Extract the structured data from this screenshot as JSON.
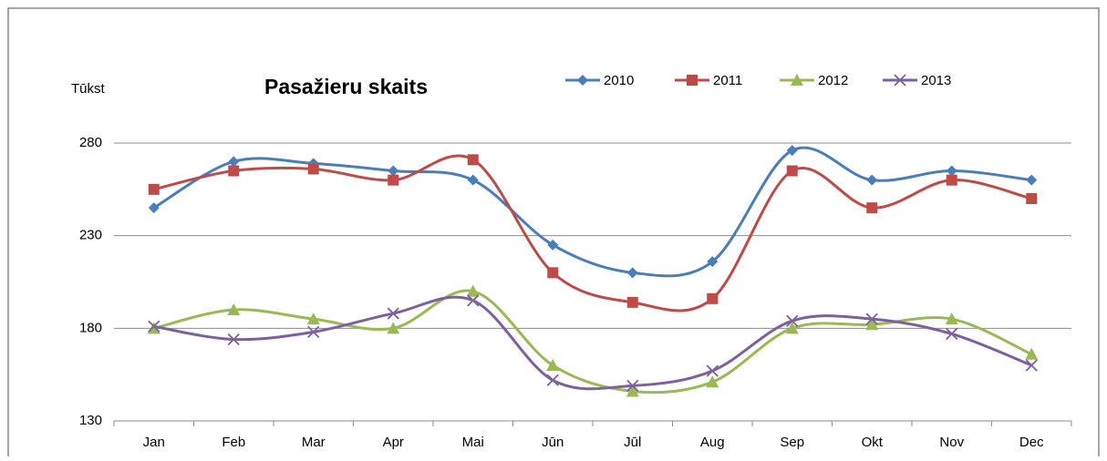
{
  "chart_data": {
    "type": "line",
    "title": "Pasažieru skaits",
    "y_axis_label": "Tūkst",
    "categories": [
      "Jan",
      "Feb",
      "Mar",
      "Apr",
      "Mai",
      "Jūn",
      "Jūl",
      "Aug",
      "Sep",
      "Okt",
      "Nov",
      "Dec"
    ],
    "series": [
      {
        "name": "2010",
        "color": "#4a7ebb",
        "marker": "diamond",
        "values": [
          245,
          270,
          269,
          265,
          260,
          225,
          210,
          216,
          276,
          260,
          265,
          260
        ]
      },
      {
        "name": "2011",
        "color": "#be4b48",
        "marker": "square",
        "values": [
          255,
          265,
          266,
          260,
          271,
          210,
          194,
          196,
          265,
          245,
          260,
          250
        ]
      },
      {
        "name": "2012",
        "color": "#98b954",
        "marker": "triangle",
        "values": [
          180,
          190,
          185,
          180,
          200,
          160,
          146,
          151,
          180,
          182,
          185,
          166
        ]
      },
      {
        "name": "2013",
        "color": "#7d60a0",
        "marker": "x",
        "values": [
          181,
          174,
          178,
          188,
          195,
          152,
          149,
          157,
          184,
          185,
          177,
          160
        ]
      }
    ],
    "ylim": [
      130,
      280
    ],
    "yticks": [
      130,
      180,
      230,
      280
    ],
    "grid": true,
    "smooth": true,
    "legend": "top"
  }
}
